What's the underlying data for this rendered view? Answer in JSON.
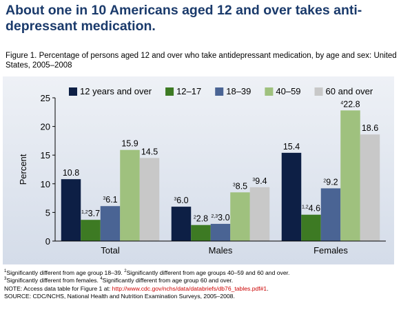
{
  "headline": "About one in 10 Americans aged 12 and over takes anti-depressant medication.",
  "caption": "Figure 1. Percentage of persons aged 12 and over who take antidepressant medication, by age and sex: United States, 2005–2008",
  "chart_data": {
    "type": "bar",
    "categories": [
      "Total",
      "Males",
      "Females"
    ],
    "series": [
      {
        "name": "12 years and over",
        "color": "#0d1f45",
        "values": [
          10.8,
          6.0,
          15.4
        ],
        "markers": [
          "",
          "3",
          ""
        ]
      },
      {
        "name": "12–17",
        "color": "#3d7a23",
        "values": [
          3.7,
          2.8,
          4.6
        ],
        "markers": [
          "1,2",
          "2",
          "1,2"
        ]
      },
      {
        "name": "18–39",
        "color": "#4a6494",
        "values": [
          6.1,
          3.0,
          9.2
        ],
        "markers": [
          "3",
          "2,3",
          "2"
        ]
      },
      {
        "name": "40–59",
        "color": "#9fc17e",
        "values": [
          15.9,
          8.5,
          22.8
        ],
        "markers": [
          "",
          "3",
          "4"
        ]
      },
      {
        "name": "60 and over",
        "color": "#c8c8c8",
        "values": [
          14.5,
          9.4,
          18.6
        ],
        "markers": [
          "",
          "3",
          ""
        ]
      }
    ],
    "ylabel": "Percent",
    "xlabel": "",
    "ylim": [
      0,
      25
    ],
    "yticks": [
      0,
      5,
      10,
      15,
      20,
      25
    ],
    "legend_position": "top"
  },
  "notes": {
    "line1": [
      {
        "sup": "1",
        "text": "Significantly different from age group 18–39.  "
      },
      {
        "sup": "2",
        "text": "Significantly different from age groups 40–59 and 60 and over."
      }
    ],
    "line2": [
      {
        "sup": "3",
        "text": "Significantly different from females.  "
      },
      {
        "sup": "4",
        "text": "Significantly different from age group 60 and over."
      }
    ],
    "note_prefix": "NOTE: Access data table for Figure 1 at: ",
    "note_link": "http://www.cdc.gov/nchs/data/databriefs/db76_tables.pdf#1",
    "note_suffix": ".",
    "source": "SOURCE: CDC/NCHS, National Health and Nutrition Examination Surveys, 2005–2008."
  }
}
